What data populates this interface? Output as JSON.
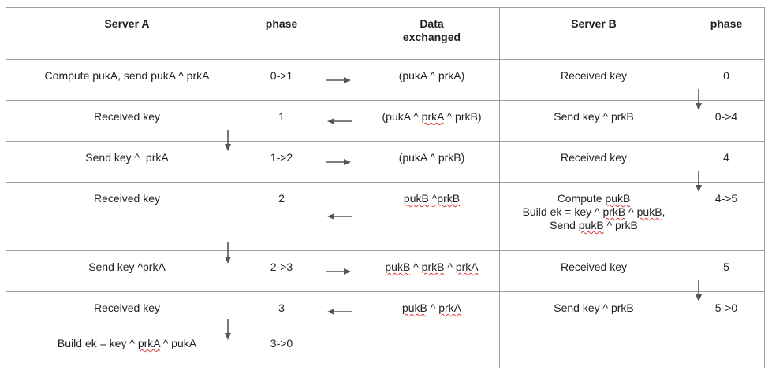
{
  "headers": {
    "server_a": "Server A",
    "phase_a": "phase",
    "arrow_col": "",
    "data": "Data\nexchanged",
    "server_b": "Server B",
    "phase_b": "phase"
  },
  "rows": [
    {
      "a": "Compute pukA, send pukA ^ prkA",
      "pa": "0->1",
      "dir": "right",
      "data": "(pukA ^ prkA)",
      "b": "Received key",
      "pb": "0"
    },
    {
      "a": "Received key",
      "pa": "1",
      "dir": "left",
      "data": "(pukA ^ prkA ^ prkB)",
      "b": "Send key ^ prkB",
      "pb": "0->4"
    },
    {
      "a": "Send key ^  prkA",
      "pa": "1->2",
      "dir": "right",
      "data": "(pukA ^ prkB)",
      "b": "Received key",
      "pb": "4"
    },
    {
      "a": "Received key",
      "pa": "2",
      "dir": "left",
      "data": "pukB ^prkB",
      "b": "Compute pukB\nBuild ek = key ^ prkB ^ pukB,\nSend pukB ^ prkB",
      "pb": "4->5"
    },
    {
      "a": "Send key ^prkA",
      "pa": "2->3",
      "dir": "right",
      "data": "pukB ^ prkB ^ prkA",
      "b": "Received key",
      "pb": "5"
    },
    {
      "a": "Received key",
      "pa": "3",
      "dir": "left",
      "data": "pukB ^ prkA",
      "b": "Send key ^ prkB",
      "pb": "5->0"
    },
    {
      "a": "Build ek = key ^ prkA ^ pukA",
      "pa": "3->0",
      "dir": "",
      "data": "",
      "b": "",
      "pb": ""
    }
  ],
  "colors": {
    "border": "#9e9e9e",
    "arrow": "#555555",
    "spellcheck": "#e03a3a"
  }
}
